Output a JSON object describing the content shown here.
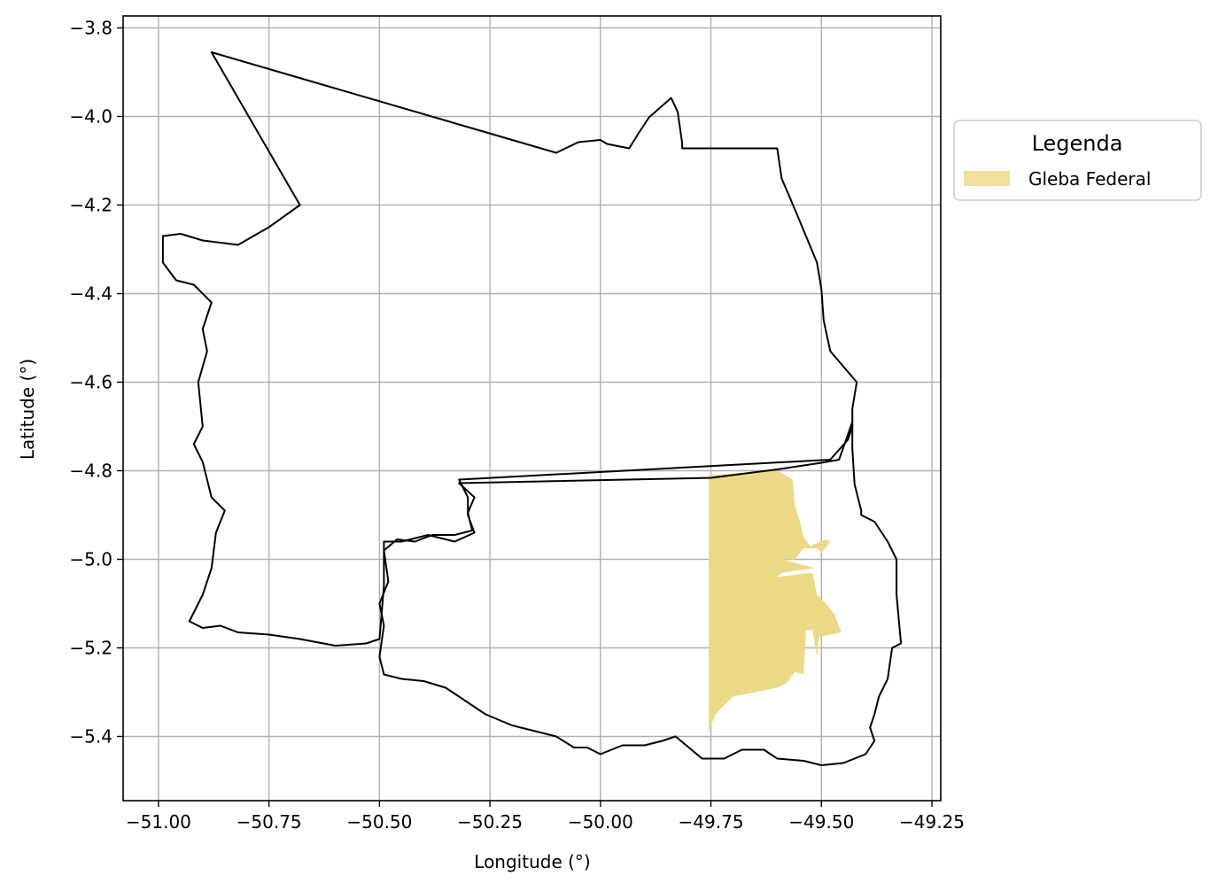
{
  "chart_data": {
    "type": "map",
    "xlabel": "Longitude (°)",
    "ylabel": "Latitude (°)",
    "xlim": [
      -51.08,
      -49.23
    ],
    "ylim": [
      -5.545,
      -3.773
    ],
    "x_ticks": [
      {
        "value": -51.0,
        "label": "−51.00"
      },
      {
        "value": -50.75,
        "label": "−50.75"
      },
      {
        "value": -50.5,
        "label": "−50.50"
      },
      {
        "value": -50.25,
        "label": "−50.25"
      },
      {
        "value": -50.0,
        "label": "−50.00"
      },
      {
        "value": -49.75,
        "label": "−49.75"
      },
      {
        "value": -49.5,
        "label": "−49.50"
      },
      {
        "value": -49.25,
        "label": "−49.25"
      }
    ],
    "y_ticks": [
      {
        "value": -3.8,
        "label": "−3.8"
      },
      {
        "value": -4.0,
        "label": "−4.0"
      },
      {
        "value": -4.2,
        "label": "−4.2"
      },
      {
        "value": -4.4,
        "label": "−4.4"
      },
      {
        "value": -4.6,
        "label": "−4.6"
      },
      {
        "value": -4.8,
        "label": "−4.8"
      },
      {
        "value": -5.0,
        "label": "−5.0"
      },
      {
        "value": -5.2,
        "label": "−5.2"
      },
      {
        "value": -5.4,
        "label": "−5.4"
      }
    ],
    "grid": true,
    "legend": {
      "title": "Legenda",
      "placement": "outside-right-top",
      "entries": [
        {
          "label": "Gleba Federal",
          "color": "#f0e09c"
        }
      ]
    },
    "colors": {
      "gleba_fill": "#ecd985",
      "boundary": "#000000",
      "grid": "#b0b0b0"
    },
    "layers": [
      {
        "name": "boundary-north",
        "kind": "outline",
        "coords": [
          [
            -50.88,
            -3.855
          ],
          [
            -50.1,
            -4.082
          ],
          [
            -50.05,
            -4.058
          ],
          [
            -50.0,
            -4.053
          ],
          [
            -49.985,
            -4.062
          ],
          [
            -49.935,
            -4.072
          ],
          [
            -49.915,
            -4.04
          ],
          [
            -49.89,
            -4.002
          ],
          [
            -49.84,
            -3.958
          ],
          [
            -49.825,
            -3.99
          ],
          [
            -49.815,
            -4.06
          ],
          [
            -49.815,
            -4.072
          ],
          [
            -49.6,
            -4.072
          ],
          [
            -49.59,
            -4.14
          ],
          [
            -49.56,
            -4.21
          ],
          [
            -49.51,
            -4.33
          ],
          [
            -49.5,
            -4.39
          ],
          [
            -49.495,
            -4.46
          ],
          [
            -49.48,
            -4.53
          ],
          [
            -49.42,
            -4.6
          ],
          [
            -49.43,
            -4.66
          ],
          [
            -49.43,
            -4.7
          ],
          [
            -49.44,
            -4.73
          ],
          [
            -49.48,
            -4.775
          ],
          [
            -50.32,
            -4.82
          ],
          [
            -50.3,
            -4.86
          ],
          [
            -50.3,
            -4.9
          ],
          [
            -50.285,
            -4.94
          ],
          [
            -50.33,
            -4.96
          ],
          [
            -50.39,
            -4.945
          ],
          [
            -50.43,
            -4.955
          ],
          [
            -50.45,
            -4.96
          ],
          [
            -50.49,
            -4.96
          ],
          [
            -50.49,
            -5.06
          ],
          [
            -50.5,
            -5.18
          ],
          [
            -50.53,
            -5.19
          ],
          [
            -50.6,
            -5.195
          ],
          [
            -50.68,
            -5.18
          ],
          [
            -50.75,
            -5.17
          ],
          [
            -50.82,
            -5.165
          ],
          [
            -50.86,
            -5.15
          ],
          [
            -50.9,
            -5.155
          ],
          [
            -50.93,
            -5.14
          ],
          [
            -50.9,
            -5.08
          ],
          [
            -50.88,
            -5.02
          ],
          [
            -50.87,
            -4.94
          ],
          [
            -50.85,
            -4.89
          ],
          [
            -50.88,
            -4.86
          ],
          [
            -50.9,
            -4.78
          ],
          [
            -50.92,
            -4.74
          ],
          [
            -50.9,
            -4.7
          ],
          [
            -50.91,
            -4.6
          ],
          [
            -50.89,
            -4.53
          ],
          [
            -50.9,
            -4.48
          ],
          [
            -50.88,
            -4.42
          ],
          [
            -50.92,
            -4.38
          ],
          [
            -50.96,
            -4.37
          ],
          [
            -50.99,
            -4.33
          ],
          [
            -50.99,
            -4.27
          ],
          [
            -50.95,
            -4.265
          ],
          [
            -50.9,
            -4.28
          ],
          [
            -50.82,
            -4.29
          ],
          [
            -50.75,
            -4.25
          ],
          [
            -50.68,
            -4.2
          ],
          [
            -50.88,
            -3.855
          ]
        ]
      },
      {
        "name": "boundary-south",
        "kind": "outline",
        "coords": [
          [
            -50.32,
            -4.828
          ],
          [
            -49.75,
            -4.816
          ],
          [
            -49.6,
            -4.797
          ],
          [
            -49.5,
            -4.782
          ],
          [
            -49.46,
            -4.775
          ],
          [
            -49.43,
            -4.69
          ],
          [
            -49.43,
            -4.75
          ],
          [
            -49.425,
            -4.83
          ],
          [
            -49.41,
            -4.89
          ],
          [
            -49.41,
            -4.9
          ],
          [
            -49.38,
            -4.915
          ],
          [
            -49.35,
            -4.96
          ],
          [
            -49.33,
            -5.0
          ],
          [
            -49.33,
            -5.08
          ],
          [
            -49.32,
            -5.19
          ],
          [
            -49.34,
            -5.2
          ],
          [
            -49.35,
            -5.27
          ],
          [
            -49.37,
            -5.31
          ],
          [
            -49.38,
            -5.35
          ],
          [
            -49.39,
            -5.38
          ],
          [
            -49.38,
            -5.41
          ],
          [
            -49.4,
            -5.44
          ],
          [
            -49.45,
            -5.46
          ],
          [
            -49.5,
            -5.465
          ],
          [
            -49.54,
            -5.455
          ],
          [
            -49.6,
            -5.45
          ],
          [
            -49.63,
            -5.43
          ],
          [
            -49.68,
            -5.43
          ],
          [
            -49.72,
            -5.45
          ],
          [
            -49.77,
            -5.45
          ],
          [
            -49.83,
            -5.4
          ],
          [
            -49.86,
            -5.41
          ],
          [
            -49.9,
            -5.42
          ],
          [
            -49.95,
            -5.42
          ],
          [
            -50.0,
            -5.44
          ],
          [
            -50.03,
            -5.425
          ],
          [
            -50.06,
            -5.425
          ],
          [
            -50.1,
            -5.4
          ],
          [
            -50.16,
            -5.385
          ],
          [
            -50.2,
            -5.375
          ],
          [
            -50.26,
            -5.35
          ],
          [
            -50.32,
            -5.31
          ],
          [
            -50.35,
            -5.29
          ],
          [
            -50.4,
            -5.275
          ],
          [
            -50.45,
            -5.27
          ],
          [
            -50.49,
            -5.26
          ],
          [
            -50.5,
            -5.22
          ],
          [
            -50.49,
            -5.15
          ],
          [
            -50.5,
            -5.1
          ],
          [
            -50.48,
            -5.05
          ],
          [
            -50.49,
            -4.98
          ],
          [
            -50.46,
            -4.955
          ],
          [
            -50.42,
            -4.96
          ],
          [
            -50.38,
            -4.945
          ],
          [
            -50.33,
            -4.945
          ],
          [
            -50.29,
            -4.935
          ],
          [
            -50.3,
            -4.895
          ],
          [
            -50.285,
            -4.86
          ],
          [
            -50.32,
            -4.828
          ]
        ]
      },
      {
        "name": "gleba-federal",
        "kind": "fill",
        "coords": [
          [
            -49.755,
            -4.81
          ],
          [
            -49.6,
            -4.8
          ],
          [
            -49.565,
            -4.82
          ],
          [
            -49.56,
            -4.88
          ],
          [
            -49.55,
            -4.91
          ],
          [
            -49.54,
            -4.95
          ],
          [
            -49.525,
            -4.97
          ],
          [
            -49.49,
            -4.955
          ],
          [
            -49.48,
            -4.96
          ],
          [
            -49.5,
            -4.985
          ],
          [
            -49.51,
            -4.975
          ],
          [
            -49.54,
            -4.975
          ],
          [
            -49.56,
            -5.0
          ],
          [
            -49.59,
            -5.0
          ],
          [
            -49.515,
            -5.02
          ],
          [
            -49.59,
            -5.03
          ],
          [
            -49.6,
            -5.04
          ],
          [
            -49.52,
            -5.03
          ],
          [
            -49.51,
            -5.08
          ],
          [
            -49.49,
            -5.1
          ],
          [
            -49.47,
            -5.125
          ],
          [
            -49.455,
            -5.165
          ],
          [
            -49.505,
            -5.175
          ],
          [
            -49.51,
            -5.22
          ],
          [
            -49.52,
            -5.16
          ],
          [
            -49.535,
            -5.16
          ],
          [
            -49.54,
            -5.26
          ],
          [
            -49.56,
            -5.255
          ],
          [
            -49.58,
            -5.28
          ],
          [
            -49.6,
            -5.29
          ],
          [
            -49.65,
            -5.3
          ],
          [
            -49.7,
            -5.31
          ],
          [
            -49.72,
            -5.33
          ],
          [
            -49.74,
            -5.35
          ],
          [
            -49.755,
            -5.39
          ]
        ]
      }
    ]
  }
}
